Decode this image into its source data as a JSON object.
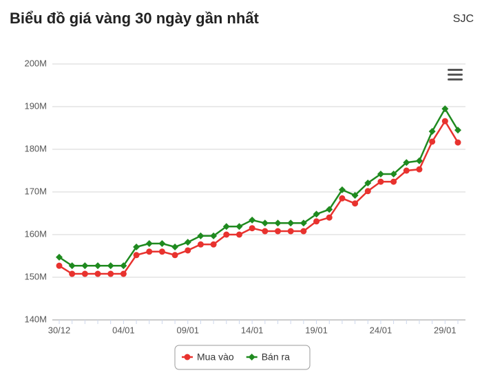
{
  "chart_data": {
    "type": "line",
    "title": "Biểu đồ giá vàng 30 ngày gần nhất",
    "subtitle": "SJC",
    "categories": [
      "30/12",
      null,
      null,
      null,
      null,
      "04/01",
      null,
      null,
      null,
      null,
      "09/01",
      null,
      null,
      null,
      null,
      "14/01",
      null,
      null,
      null,
      null,
      "19/01",
      null,
      null,
      null,
      null,
      "24/01",
      null,
      null,
      null,
      null,
      "29/01",
      null
    ],
    "series": [
      {
        "name": "Mua vào",
        "color": "#e8322e",
        "marker": "circle",
        "values": [
          152.7,
          150.8,
          150.8,
          150.8,
          150.8,
          150.8,
          155.2,
          156.0,
          156.0,
          155.2,
          156.3,
          157.7,
          157.7,
          160.0,
          160.0,
          161.5,
          160.8,
          160.8,
          160.8,
          160.8,
          163.1,
          164.0,
          168.5,
          167.3,
          170.2,
          172.4,
          172.4,
          175.0,
          175.3,
          181.8,
          186.6,
          181.6
        ]
      },
      {
        "name": "Bán ra",
        "color": "#1f8a1f",
        "marker": "diamond",
        "values": [
          154.7,
          152.7,
          152.7,
          152.7,
          152.7,
          152.7,
          157.1,
          157.9,
          157.9,
          157.1,
          158.2,
          159.7,
          159.7,
          161.9,
          161.9,
          163.4,
          162.7,
          162.7,
          162.7,
          162.7,
          164.8,
          165.9,
          170.5,
          169.2,
          172.1,
          174.2,
          174.2,
          176.9,
          177.3,
          184.2,
          189.5,
          184.5
        ]
      }
    ],
    "ylim": [
      140,
      200
    ],
    "yticks": [
      {
        "value": 140,
        "label": "140M"
      },
      {
        "value": 150,
        "label": "150M"
      },
      {
        "value": 160,
        "label": "160M"
      },
      {
        "value": 170,
        "label": "170M"
      },
      {
        "value": 180,
        "label": "180M"
      },
      {
        "value": 190,
        "label": "190M"
      },
      {
        "value": 200,
        "label": "200M"
      }
    ],
    "grid": true
  }
}
